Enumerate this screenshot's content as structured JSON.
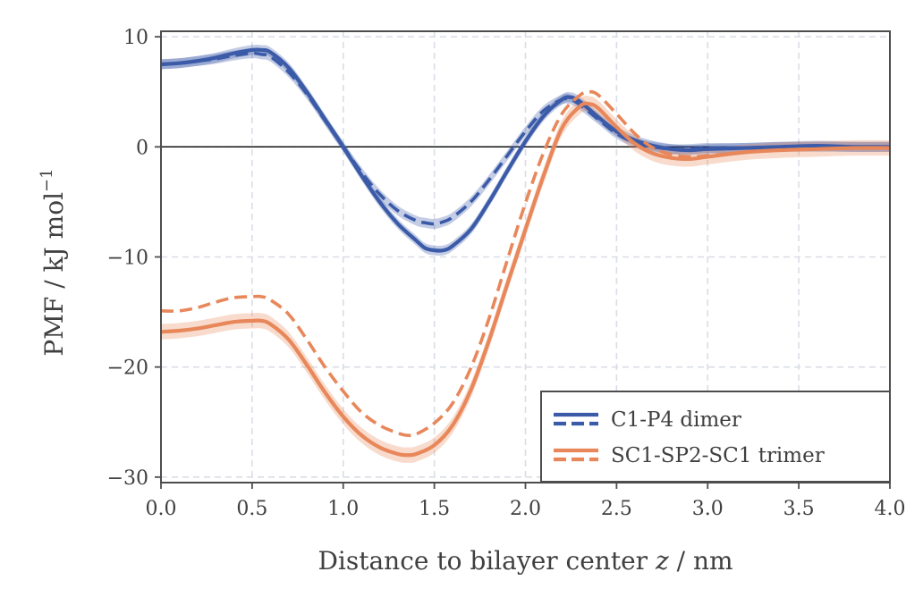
{
  "chart_data": {
    "type": "line",
    "title": "",
    "xlabel_prefix": "Distance to bilayer center ",
    "xlabel_var": "z",
    "xlabel_suffix": " / nm",
    "ylabel_main": "PMF / kJ mol",
    "ylabel_sup": "−1",
    "xlim": [
      0,
      4
    ],
    "ylim": [
      -30.5,
      10.5
    ],
    "xticks": [
      0,
      0.5,
      1,
      1.5,
      2,
      2.5,
      3,
      3.5,
      4
    ],
    "xtick_labels": [
      "0.0",
      "0.5",
      "1.0",
      "1.5",
      "2.0",
      "2.5",
      "3.0",
      "3.5",
      "4.0"
    ],
    "yticks": [
      10,
      0,
      -10,
      -20,
      -30
    ],
    "ytick_labels": [
      "10",
      "0",
      "−10",
      "−20",
      "−30"
    ],
    "grid": true,
    "reference_line_y": 0,
    "legend_position": "bottom-right",
    "colors": {
      "blue": "#3b5ba8",
      "orange": "#e8875a",
      "grid": "#d9dde6",
      "zero": "#000000"
    },
    "series": [
      {
        "name": "C1-P4 dimer (solid)",
        "style": "solid",
        "color": "#3b5ba8",
        "band": 0.45,
        "x": [
          0,
          0.1,
          0.2,
          0.3,
          0.4,
          0.5,
          0.55,
          0.6,
          0.7,
          0.8,
          0.9,
          1.0,
          1.1,
          1.2,
          1.3,
          1.4,
          1.45,
          1.5,
          1.55,
          1.6,
          1.7,
          1.8,
          1.9,
          2.0,
          2.1,
          2.2,
          2.25,
          2.3,
          2.4,
          2.5,
          2.6,
          2.7,
          2.8,
          2.9,
          3.0,
          3.2,
          3.4,
          3.6,
          3.8,
          4.0
        ],
        "y": [
          7.5,
          7.6,
          7.8,
          8.1,
          8.5,
          8.8,
          8.8,
          8.6,
          7.2,
          5.0,
          2.5,
          0.0,
          -2.6,
          -5.0,
          -7.0,
          -8.5,
          -9.2,
          -9.4,
          -9.4,
          -9.0,
          -7.5,
          -5.0,
          -2.2,
          0.5,
          2.8,
          4.3,
          4.5,
          4.1,
          2.7,
          1.4,
          0.6,
          0.1,
          -0.2,
          -0.3,
          -0.2,
          -0.1,
          0.0,
          0.1,
          0.0,
          0.0
        ]
      },
      {
        "name": "C1-P4 dimer (dashed)",
        "style": "dashed",
        "color": "#3b5ba8",
        "band": 0.45,
        "x": [
          0,
          0.1,
          0.2,
          0.3,
          0.4,
          0.5,
          0.55,
          0.6,
          0.7,
          0.8,
          0.9,
          1.0,
          1.1,
          1.2,
          1.3,
          1.4,
          1.45,
          1.5,
          1.55,
          1.6,
          1.7,
          1.8,
          1.9,
          2.0,
          2.1,
          2.2,
          2.25,
          2.3,
          2.4,
          2.5,
          2.6,
          2.7,
          2.8,
          2.9,
          3.0,
          3.2,
          3.4,
          3.6,
          3.8,
          4.0
        ],
        "y": [
          7.5,
          7.6,
          7.8,
          8.0,
          8.3,
          8.5,
          8.4,
          8.2,
          6.8,
          4.8,
          2.4,
          0.0,
          -2.3,
          -4.3,
          -5.8,
          -6.7,
          -6.9,
          -7.0,
          -6.8,
          -6.4,
          -5.0,
          -3.0,
          -0.8,
          1.4,
          3.3,
          4.3,
          4.3,
          3.8,
          2.5,
          1.2,
          0.4,
          0.0,
          -0.2,
          -0.2,
          -0.1,
          -0.1,
          0.0,
          0.0,
          0.0,
          0.0
        ]
      },
      {
        "name": "SC1-SP2-SC1 trimer (solid)",
        "style": "solid",
        "color": "#e8875a",
        "band": 0.7,
        "x": [
          0,
          0.1,
          0.2,
          0.3,
          0.4,
          0.5,
          0.55,
          0.6,
          0.7,
          0.8,
          0.9,
          1.0,
          1.1,
          1.2,
          1.3,
          1.35,
          1.4,
          1.5,
          1.6,
          1.7,
          1.8,
          1.9,
          2.0,
          2.1,
          2.2,
          2.3,
          2.35,
          2.4,
          2.5,
          2.6,
          2.7,
          2.8,
          2.9,
          3.0,
          3.2,
          3.4,
          3.6,
          3.8,
          4.0
        ],
        "y": [
          -16.8,
          -16.7,
          -16.5,
          -16.2,
          -15.9,
          -15.8,
          -15.8,
          -16.1,
          -17.5,
          -19.8,
          -22.3,
          -24.5,
          -26.2,
          -27.3,
          -27.9,
          -28.0,
          -27.9,
          -27.1,
          -25.3,
          -22.1,
          -17.6,
          -12.5,
          -7.5,
          -2.6,
          1.7,
          3.7,
          3.9,
          3.5,
          1.8,
          0.3,
          -0.6,
          -1.0,
          -1.1,
          -0.9,
          -0.5,
          -0.3,
          -0.2,
          -0.1,
          -0.1
        ]
      },
      {
        "name": "SC1-SP2-SC1 trimer (dashed)",
        "style": "dashed",
        "color": "#e8875a",
        "band": 0,
        "x": [
          0,
          0.1,
          0.2,
          0.3,
          0.4,
          0.5,
          0.55,
          0.6,
          0.7,
          0.8,
          0.9,
          1.0,
          1.1,
          1.2,
          1.3,
          1.35,
          1.4,
          1.5,
          1.6,
          1.7,
          1.8,
          1.9,
          2.0,
          2.1,
          2.2,
          2.3,
          2.35,
          2.4,
          2.5,
          2.6,
          2.7,
          2.8,
          2.9,
          3.0,
          3.2,
          3.4,
          3.6,
          3.8,
          4.0
        ],
        "y": [
          -14.9,
          -14.9,
          -14.6,
          -14.1,
          -13.7,
          -13.6,
          -13.6,
          -13.9,
          -15.2,
          -17.5,
          -20.0,
          -22.2,
          -24.1,
          -25.3,
          -26.0,
          -26.2,
          -26.1,
          -25.1,
          -23.3,
          -20.1,
          -15.6,
          -10.3,
          -5.1,
          -0.5,
          3.0,
          4.7,
          5.0,
          4.7,
          3.0,
          1.2,
          -0.1,
          -0.7,
          -0.9,
          -0.8,
          -0.5,
          -0.3,
          -0.2,
          -0.1,
          -0.1
        ]
      }
    ],
    "legend": [
      {
        "label": "C1-P4 dimer",
        "color": "#3b5ba8"
      },
      {
        "label": "SC1-SP2-SC1 trimer",
        "color": "#e8875a"
      }
    ]
  }
}
